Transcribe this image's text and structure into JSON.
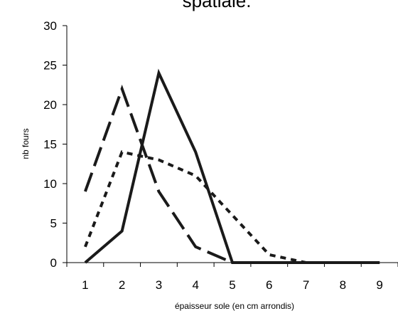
{
  "chart_data": {
    "type": "line",
    "title": "spatiale.",
    "xlabel": "épaisseur sole (en cm arrondis)",
    "ylabel": "nb fours",
    "categories": [
      "1",
      "2",
      "3",
      "4",
      "5",
      "6",
      "7",
      "8",
      "9"
    ],
    "ylim": [
      0,
      30
    ],
    "yticks": [
      0,
      5,
      10,
      15,
      20,
      25,
      30
    ],
    "grid": false,
    "legend": "none",
    "series": [
      {
        "style": "solid",
        "color": "#1a1a1a",
        "values": [
          0,
          4,
          24,
          14,
          0,
          0,
          0,
          0,
          0
        ]
      },
      {
        "style": "long-dash",
        "color": "#1a1a1a",
        "values": [
          9,
          22,
          9,
          2,
          0,
          0,
          0,
          0,
          0
        ]
      },
      {
        "style": "dotted",
        "color": "#1a1a1a",
        "values": [
          2,
          14,
          13,
          11,
          6,
          1,
          0,
          0,
          0
        ]
      }
    ]
  }
}
